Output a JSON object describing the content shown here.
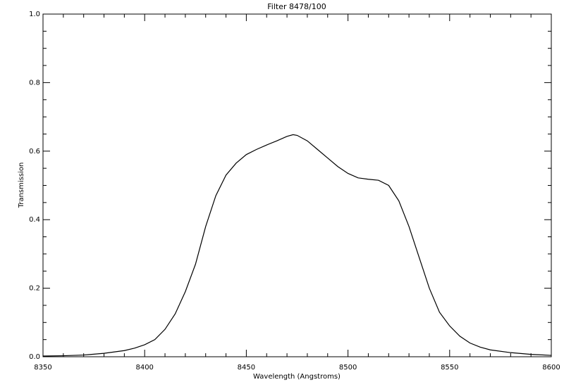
{
  "chart_data": {
    "type": "line",
    "title": "Filter 8478/100",
    "xlabel": "Wavelength (Angstroms)",
    "ylabel": "Transmission",
    "x": [
      8350,
      8360,
      8370,
      8380,
      8390,
      8395,
      8400,
      8405,
      8410,
      8415,
      8420,
      8425,
      8430,
      8435,
      8440,
      8445,
      8450,
      8455,
      8460,
      8465,
      8470,
      8473,
      8475,
      8480,
      8485,
      8490,
      8495,
      8500,
      8505,
      8510,
      8515,
      8520,
      8525,
      8530,
      8535,
      8540,
      8545,
      8550,
      8555,
      8560,
      8565,
      8570,
      8580,
      8590,
      8600
    ],
    "series": [
      {
        "color": "#000000",
        "values": [
          0.002,
          0.003,
          0.005,
          0.01,
          0.018,
          0.025,
          0.035,
          0.05,
          0.08,
          0.125,
          0.19,
          0.27,
          0.38,
          0.47,
          0.53,
          0.565,
          0.59,
          0.605,
          0.618,
          0.63,
          0.643,
          0.648,
          0.646,
          0.63,
          0.605,
          0.58,
          0.555,
          0.535,
          0.522,
          0.518,
          0.515,
          0.5,
          0.455,
          0.38,
          0.29,
          0.2,
          0.13,
          0.09,
          0.06,
          0.04,
          0.028,
          0.02,
          0.012,
          0.007,
          0.004
        ]
      }
    ],
    "xlim": [
      8350,
      8600
    ],
    "xticks": [
      8350,
      8400,
      8450,
      8500,
      8550,
      8600
    ],
    "xminorticks": [
      8360,
      8370,
      8380,
      8390,
      8410,
      8420,
      8430,
      8440,
      8460,
      8470,
      8480,
      8490,
      8510,
      8520,
      8530,
      8540,
      8560,
      8570,
      8580,
      8590
    ],
    "ylim": [
      0,
      1
    ],
    "yticks": [
      {
        "value": 0,
        "label": "0.0"
      },
      {
        "value": 0.2,
        "label": "0.2"
      },
      {
        "value": 0.4,
        "label": "0.4"
      },
      {
        "value": 0.6,
        "label": "0.6"
      },
      {
        "value": 0.8,
        "label": "0.8"
      },
      {
        "value": 1,
        "label": "1.0"
      }
    ],
    "yminorticks": [
      0.05,
      0.1,
      0.15,
      0.25,
      0.3,
      0.35,
      0.45,
      0.5,
      0.55,
      0.65,
      0.7,
      0.75,
      0.85,
      0.9,
      0.95
    ],
    "grid": false
  }
}
